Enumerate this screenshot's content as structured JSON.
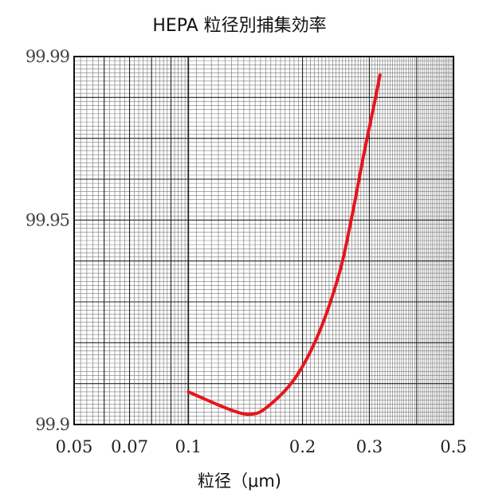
{
  "chart_data": {
    "type": "line",
    "title": "HEPA 粒径別捕集効率",
    "xlabel": "粒径（μm)",
    "ylabel": "",
    "x_scale": "log",
    "xlim": [
      0.05,
      0.5
    ],
    "ylim": [
      99.9,
      99.99
    ],
    "x_ticks": [
      {
        "value": 0.05,
        "label": "0.05"
      },
      {
        "value": 0.07,
        "label": "0.07"
      },
      {
        "value": 0.1,
        "label": "0.1"
      },
      {
        "value": 0.2,
        "label": "0.2"
      },
      {
        "value": 0.3,
        "label": "0.3"
      },
      {
        "value": 0.5,
        "label": "0.5"
      }
    ],
    "y_ticks": [
      {
        "value": 99.99,
        "label": "99.99"
      },
      {
        "value": 99.95,
        "label": "99.95"
      },
      {
        "value": 99.9,
        "label": "99.9"
      }
    ],
    "grid": true,
    "series": [
      {
        "color": "#e8141c",
        "points": [
          {
            "x": 0.1,
            "y": 99.908
          },
          {
            "x": 0.11,
            "y": 99.9063
          },
          {
            "x": 0.13,
            "y": 99.9035
          },
          {
            "x": 0.145,
            "y": 99.9025
          },
          {
            "x": 0.16,
            "y": 99.904
          },
          {
            "x": 0.19,
            "y": 99.911
          },
          {
            "x": 0.22,
            "y": 99.922
          },
          {
            "x": 0.25,
            "y": 99.937
          },
          {
            "x": 0.27,
            "y": 99.951
          },
          {
            "x": 0.29,
            "y": 99.966
          },
          {
            "x": 0.31,
            "y": 99.979
          },
          {
            "x": 0.32,
            "y": 99.9855
          }
        ]
      }
    ]
  }
}
